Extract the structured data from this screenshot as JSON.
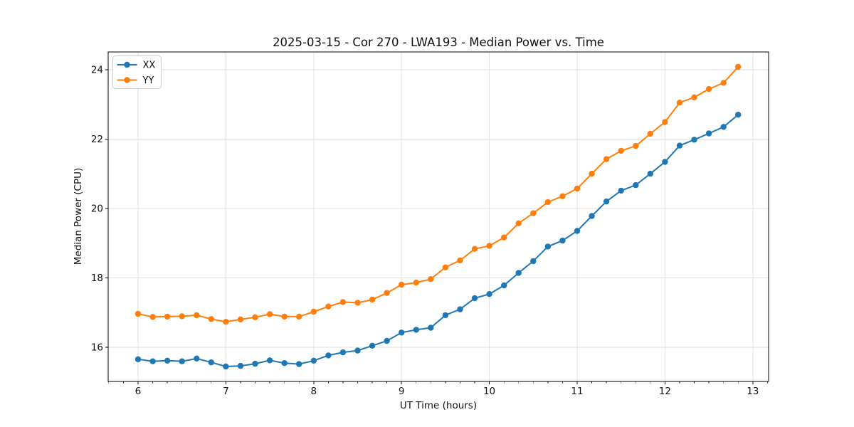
{
  "chart_data": {
    "type": "line",
    "title": "2025-03-15 - Cor 270 - LWA193 - Median Power vs. Time",
    "xlabel": "UT Time (hours)",
    "ylabel": "Median Power (CPU)",
    "x": [
      6.0,
      6.167,
      6.333,
      6.5,
      6.667,
      6.833,
      7.0,
      7.167,
      7.333,
      7.5,
      7.667,
      7.833,
      8.0,
      8.167,
      8.333,
      8.5,
      8.667,
      8.833,
      9.0,
      9.167,
      9.333,
      9.5,
      9.667,
      9.833,
      10.0,
      10.167,
      10.333,
      10.5,
      10.667,
      10.833,
      11.0,
      11.167,
      11.333,
      11.5,
      11.667,
      11.833,
      12.0,
      12.167,
      12.333,
      12.5,
      12.667,
      12.833
    ],
    "series": [
      {
        "name": "XX",
        "color": "#1f77b4",
        "values": [
          15.65,
          15.59,
          15.61,
          15.59,
          15.67,
          15.56,
          15.44,
          15.46,
          15.52,
          15.62,
          15.54,
          15.51,
          15.61,
          15.76,
          15.85,
          15.9,
          16.04,
          16.18,
          16.42,
          16.5,
          16.56,
          16.92,
          17.09,
          17.41,
          17.53,
          17.78,
          18.14,
          18.48,
          18.9,
          19.07,
          19.35,
          19.78,
          20.2,
          20.51,
          20.67,
          21.0,
          21.34,
          21.81,
          21.98,
          22.16,
          22.35,
          22.7
        ]
      },
      {
        "name": "YY",
        "color": "#ff7f0e",
        "values": [
          16.96,
          16.87,
          16.88,
          16.89,
          16.92,
          16.81,
          16.73,
          16.8,
          16.86,
          16.95,
          16.88,
          16.88,
          17.02,
          17.17,
          17.3,
          17.28,
          17.37,
          17.56,
          17.8,
          17.86,
          17.96,
          18.3,
          18.5,
          18.83,
          18.92,
          19.16,
          19.57,
          19.86,
          20.18,
          20.35,
          20.57,
          21.0,
          21.42,
          21.66,
          21.8,
          22.15,
          22.49,
          23.05,
          23.2,
          23.44,
          23.62,
          24.08
        ]
      }
    ],
    "xlim": [
      5.66,
      13.18
    ],
    "ylim": [
      15.01,
      24.51
    ],
    "xticks": [
      6,
      7,
      8,
      9,
      10,
      11,
      12,
      13
    ],
    "yticks": [
      16,
      18,
      20,
      22,
      24
    ],
    "x_minor_step": 0.16667,
    "grid": true,
    "legend": {
      "position": "upper-left",
      "entries": [
        "XX",
        "YY"
      ]
    }
  },
  "colors": {
    "background": "#ffffff",
    "grid": "#e0e0e0",
    "axis": "#000000",
    "text": "#111111",
    "series_xx": "#1f77b4",
    "series_yy": "#ff7f0e"
  }
}
